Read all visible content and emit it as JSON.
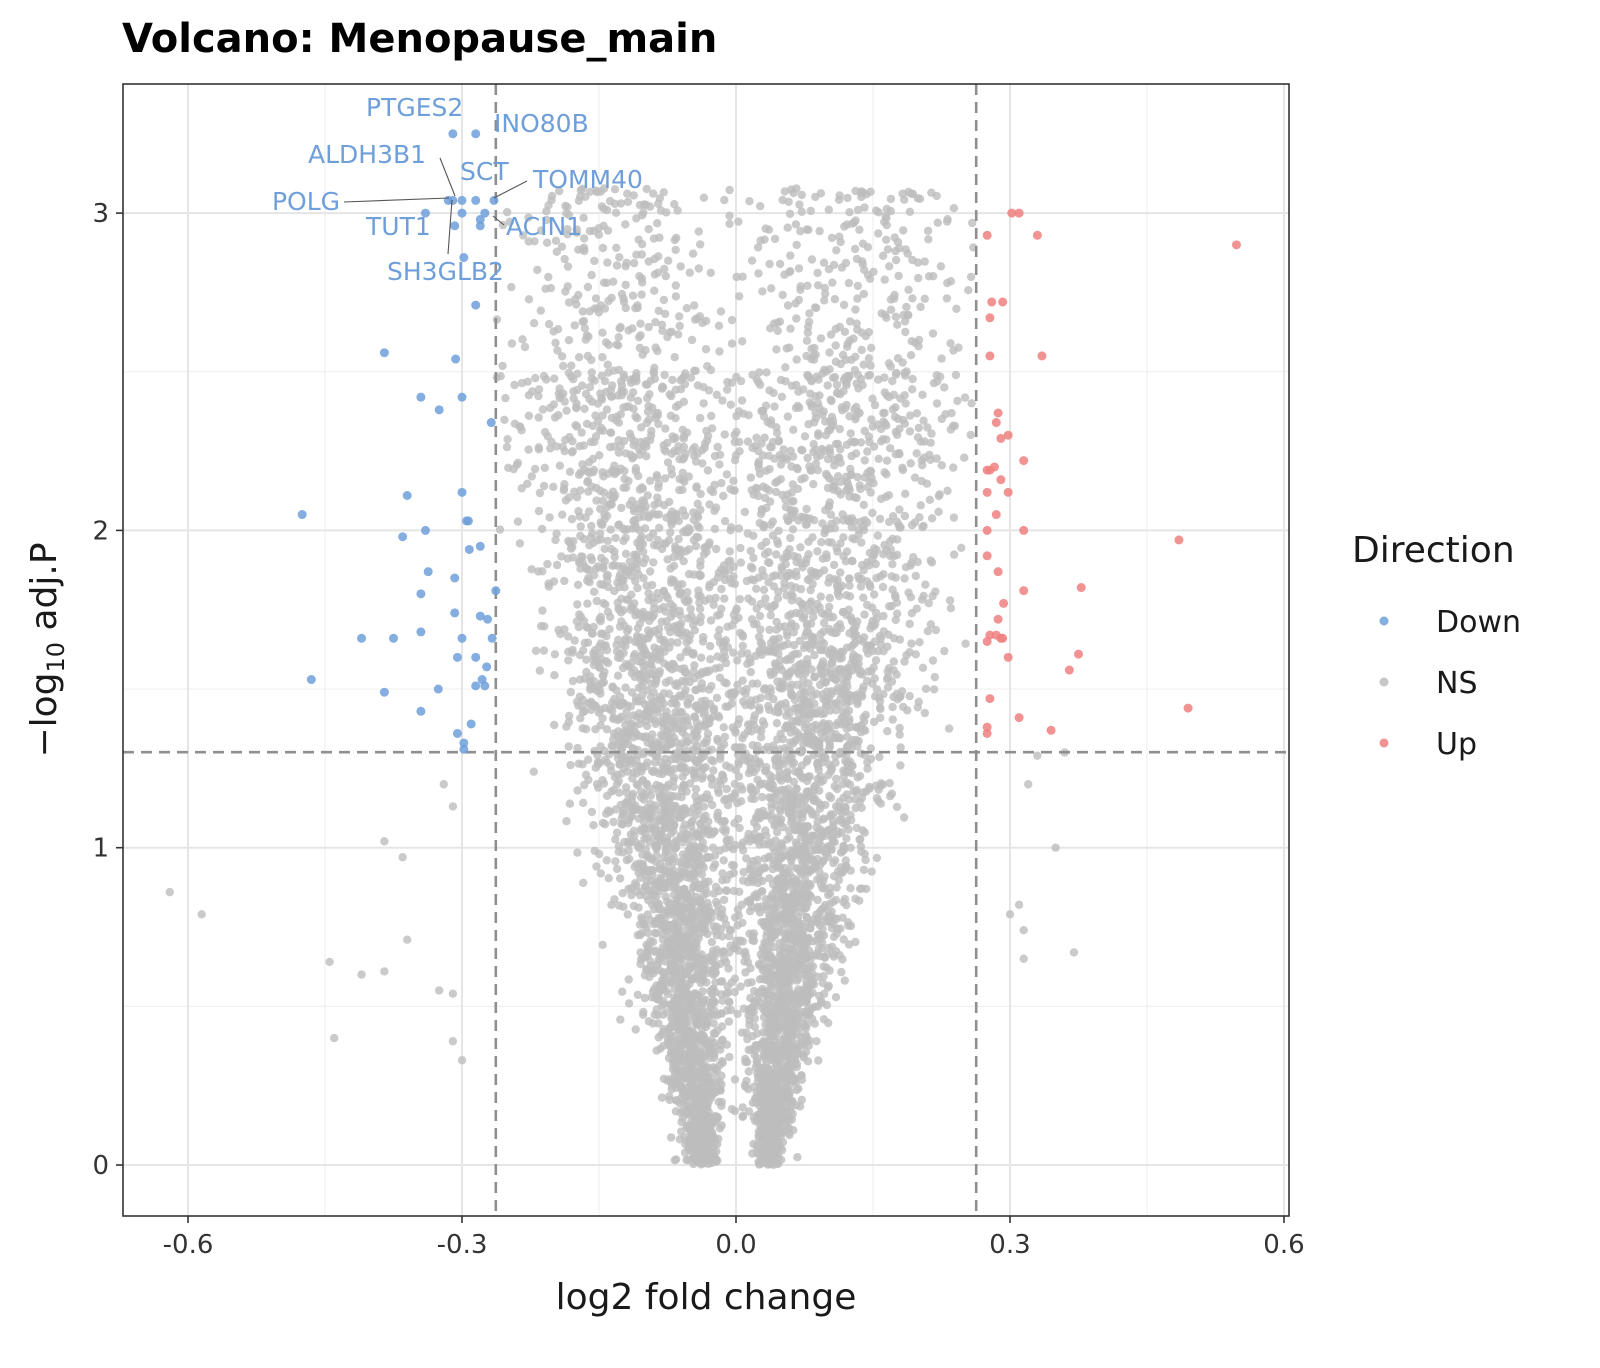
{
  "chart_data": {
    "type": "scatter",
    "title": "Volcano: Menopause_main",
    "xlabel": "log2 fold change",
    "ylabel": "-log10 adj.P",
    "xlim": [
      -0.67,
      0.6
    ],
    "ylim": [
      -0.15,
      3.3
    ],
    "x_ticks": [
      -0.6,
      -0.3,
      0.0,
      0.3,
      0.6
    ],
    "x_tick_labels": [
      "-0.6",
      "-0.3",
      "0.0",
      "0.3",
      "0.6"
    ],
    "y_ticks": [
      0,
      1,
      2,
      3
    ],
    "y_tick_labels": [
      "0",
      "1",
      "2",
      "3"
    ],
    "grid": true,
    "thresholds": {
      "log2fc": [
        -0.263,
        0.263
      ],
      "neg_log10_p": 1.301
    },
    "legend": {
      "title": "Direction",
      "placement": "right",
      "entries": [
        {
          "name": "Down",
          "color": "#6f9fdb"
        },
        {
          "name": "NS",
          "color": "#bdbdbd"
        },
        {
          "name": "Up",
          "color": "#f08080"
        }
      ]
    },
    "series": [
      {
        "name": "Down",
        "color": "#6f9fdb",
        "points": [
          [
            -0.31,
            3.25
          ],
          [
            -0.285,
            3.25
          ],
          [
            -0.3,
            3.04
          ],
          [
            -0.31,
            3.04
          ],
          [
            -0.315,
            3.04
          ],
          [
            -0.285,
            3.04
          ],
          [
            -0.265,
            3.04
          ],
          [
            -0.3,
            3.0
          ],
          [
            -0.275,
            3.0
          ],
          [
            -0.34,
            3.0
          ],
          [
            -0.28,
            2.98
          ],
          [
            -0.308,
            2.96
          ],
          [
            -0.28,
            2.96
          ],
          [
            -0.298,
            2.86
          ],
          [
            -0.285,
            2.71
          ],
          [
            -0.385,
            2.56
          ],
          [
            -0.307,
            2.54
          ],
          [
            -0.3,
            2.42
          ],
          [
            -0.345,
            2.42
          ],
          [
            -0.325,
            2.38
          ],
          [
            -0.268,
            2.34
          ],
          [
            -0.3,
            2.12
          ],
          [
            -0.36,
            2.11
          ],
          [
            -0.475,
            2.05
          ],
          [
            -0.295,
            2.03
          ],
          [
            -0.293,
            2.03
          ],
          [
            -0.34,
            2.0
          ],
          [
            -0.365,
            1.98
          ],
          [
            -0.28,
            1.95
          ],
          [
            -0.292,
            1.94
          ],
          [
            -0.337,
            1.87
          ],
          [
            -0.308,
            1.85
          ],
          [
            -0.263,
            1.81
          ],
          [
            -0.345,
            1.8
          ],
          [
            -0.308,
            1.74
          ],
          [
            -0.28,
            1.73
          ],
          [
            -0.272,
            1.72
          ],
          [
            -0.345,
            1.68
          ],
          [
            -0.267,
            1.66
          ],
          [
            -0.41,
            1.66
          ],
          [
            -0.375,
            1.66
          ],
          [
            -0.3,
            1.66
          ],
          [
            -0.305,
            1.6
          ],
          [
            -0.285,
            1.6
          ],
          [
            -0.273,
            1.57
          ],
          [
            -0.465,
            1.53
          ],
          [
            -0.278,
            1.53
          ],
          [
            -0.285,
            1.51
          ],
          [
            -0.275,
            1.51
          ],
          [
            -0.326,
            1.5
          ],
          [
            -0.385,
            1.49
          ],
          [
            -0.345,
            1.43
          ],
          [
            -0.29,
            1.39
          ],
          [
            -0.305,
            1.36
          ],
          [
            -0.298,
            1.33
          ],
          [
            -0.298,
            1.31
          ]
        ]
      },
      {
        "name": "NS",
        "color": "#bdbdbd"
      },
      {
        "name": "Up",
        "color": "#f08080",
        "points": [
          [
            0.302,
            3.0
          ],
          [
            0.31,
            3.0
          ],
          [
            0.275,
            2.93
          ],
          [
            0.33,
            2.93
          ],
          [
            0.548,
            2.9
          ],
          [
            0.28,
            2.72
          ],
          [
            0.292,
            2.72
          ],
          [
            0.278,
            2.67
          ],
          [
            0.278,
            2.55
          ],
          [
            0.335,
            2.55
          ],
          [
            0.287,
            2.37
          ],
          [
            0.285,
            2.34
          ],
          [
            0.29,
            2.29
          ],
          [
            0.298,
            2.3
          ],
          [
            0.315,
            2.22
          ],
          [
            0.283,
            2.2
          ],
          [
            0.275,
            2.19
          ],
          [
            0.278,
            2.19
          ],
          [
            0.29,
            2.16
          ],
          [
            0.275,
            2.12
          ],
          [
            0.298,
            2.12
          ],
          [
            0.285,
            2.05
          ],
          [
            0.275,
            2.0
          ],
          [
            0.315,
            2.0
          ],
          [
            0.485,
            1.97
          ],
          [
            0.275,
            1.92
          ],
          [
            0.287,
            1.87
          ],
          [
            0.378,
            1.82
          ],
          [
            0.315,
            1.81
          ],
          [
            0.293,
            1.77
          ],
          [
            0.287,
            1.72
          ],
          [
            0.278,
            1.67
          ],
          [
            0.285,
            1.67
          ],
          [
            0.292,
            1.66
          ],
          [
            0.29,
            1.66
          ],
          [
            0.275,
            1.65
          ],
          [
            0.375,
            1.61
          ],
          [
            0.298,
            1.6
          ],
          [
            0.365,
            1.56
          ],
          [
            0.278,
            1.47
          ],
          [
            0.495,
            1.44
          ],
          [
            0.31,
            1.41
          ],
          [
            0.345,
            1.37
          ],
          [
            0.275,
            1.38
          ],
          [
            0.275,
            1.36
          ]
        ]
      }
    ],
    "annotations": [
      {
        "text": "PTGES2",
        "x": -0.31,
        "y": 3.25
      },
      {
        "text": "INO80B",
        "x": -0.285,
        "y": 3.25
      },
      {
        "text": "ALDH3B1",
        "x": -0.315,
        "y": 3.04
      },
      {
        "text": "SCT",
        "x": -0.285,
        "y": 3.04
      },
      {
        "text": "TOMM40",
        "x": -0.265,
        "y": 3.04
      },
      {
        "text": "POLG",
        "x": -0.31,
        "y": 3.04
      },
      {
        "text": "TUT1",
        "x": -0.34,
        "y": 3.0
      },
      {
        "text": "ACIN1",
        "x": -0.275,
        "y": 3.0
      },
      {
        "text": "SH3GLB2",
        "x": -0.308,
        "y": 3.04
      }
    ]
  }
}
